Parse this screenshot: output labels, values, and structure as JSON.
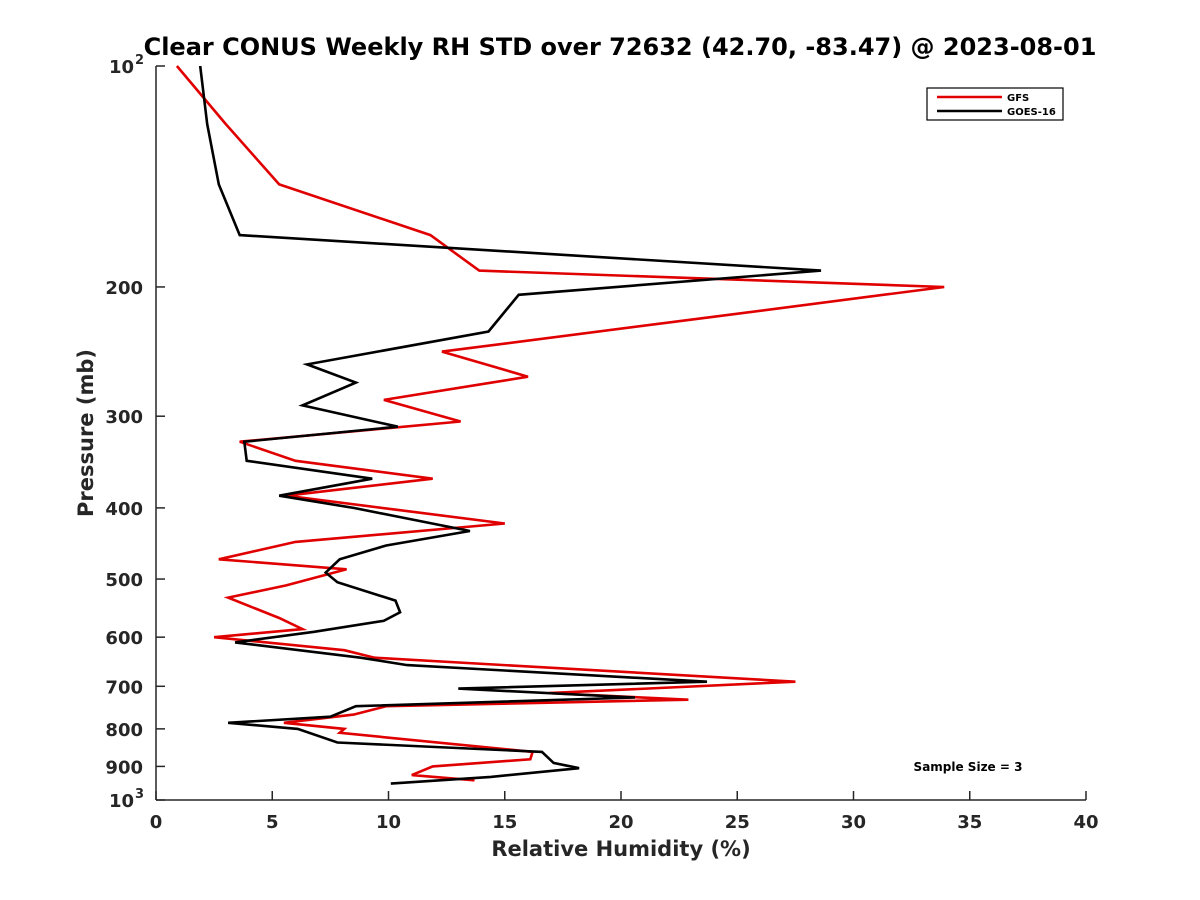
{
  "chart_data": {
    "type": "line",
    "title": "Clear CONUS Weekly RH STD over 72632 (42.70, -83.47) @ 2023-08-01",
    "xlabel": "Relative Humidity (%)",
    "ylabel": "Pressure (mb)",
    "xlim": [
      0,
      40
    ],
    "ylim": [
      100,
      1000
    ],
    "yscale": "log",
    "y_reversed": true,
    "grid": false,
    "legend_position": "top-right",
    "x_ticks": [
      "0",
      "5",
      "10",
      "15",
      "20",
      "25",
      "30",
      "35",
      "40"
    ],
    "y_ticks": [
      {
        "value": 100,
        "label": "10",
        "exp": "2"
      },
      {
        "value": 200,
        "label": "200",
        "exp": ""
      },
      {
        "value": 300,
        "label": "300",
        "exp": ""
      },
      {
        "value": 400,
        "label": "400",
        "exp": ""
      },
      {
        "value": 500,
        "label": "500",
        "exp": ""
      },
      {
        "value": 600,
        "label": "600",
        "exp": ""
      },
      {
        "value": 700,
        "label": "700",
        "exp": ""
      },
      {
        "value": 800,
        "label": "800",
        "exp": ""
      },
      {
        "value": 900,
        "label": "900",
        "exp": ""
      },
      {
        "value": 1000,
        "label": "10",
        "exp": "3"
      }
    ],
    "series": [
      {
        "name": "GFS",
        "color": "#e00000",
        "x": [
          0.9,
          3.0,
          5.3,
          11.8,
          13.9,
          33.9,
          23.8,
          12.3,
          16.0,
          9.8,
          13.1,
          3.6,
          6.0,
          11.9,
          5.6,
          15.0,
          6.0,
          2.7,
          8.2,
          5.6,
          3.1,
          5.3,
          6.3,
          2.5,
          8.1,
          9.4,
          27.5,
          16.9,
          22.9,
          9.9,
          8.5,
          5.5,
          8.1,
          7.9,
          16.2,
          16.1,
          11.9,
          11.0,
          13.7
        ],
        "y": [
          100,
          120,
          145,
          170,
          190,
          200,
          220,
          245,
          265,
          285,
          305,
          325,
          345,
          365,
          385,
          420,
          445,
          470,
          485,
          510,
          530,
          565,
          585,
          600,
          625,
          640,
          690,
          715,
          730,
          745,
          765,
          785,
          800,
          810,
          860,
          880,
          900,
          925,
          940
        ]
      },
      {
        "name": "GOES-16",
        "color": "#000000",
        "x": [
          1.9,
          2.2,
          2.7,
          3.6,
          28.6,
          15.6,
          14.3,
          6.5,
          8.6,
          6.3,
          10.4,
          3.8,
          3.9,
          9.3,
          5.3,
          8.5,
          13.5,
          9.9,
          7.9,
          7.3,
          7.8,
          10.3,
          10.5,
          9.8,
          6.8,
          3.4,
          8.8,
          10.8,
          23.7,
          13.0,
          20.6,
          8.6,
          7.5,
          3.1,
          6.1,
          7.8,
          16.6,
          17.1,
          18.2,
          14.4,
          10.1
        ],
        "y": [
          100,
          120,
          145,
          170,
          190,
          205,
          230,
          255,
          270,
          290,
          310,
          325,
          345,
          365,
          385,
          400,
          430,
          450,
          470,
          490,
          505,
          535,
          555,
          570,
          590,
          610,
          640,
          655,
          690,
          705,
          725,
          745,
          770,
          785,
          800,
          835,
          860,
          890,
          905,
          930,
          950
        ]
      }
    ],
    "annotations": [
      "Sample Size = 3"
    ]
  }
}
